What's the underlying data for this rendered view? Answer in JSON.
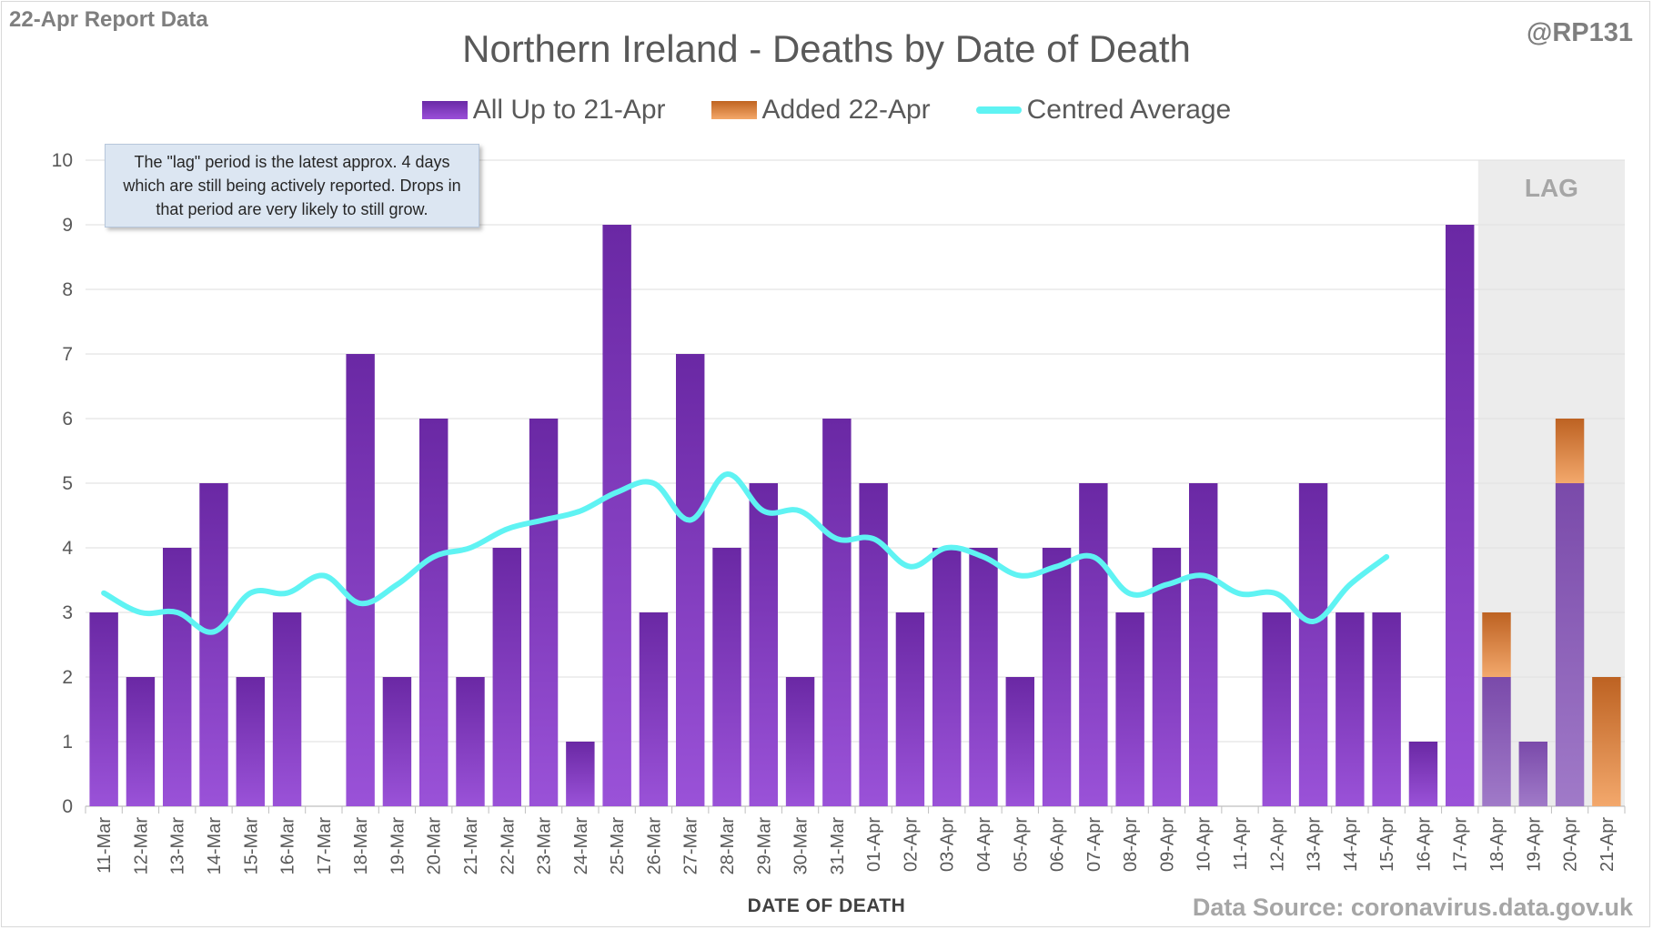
{
  "header": {
    "report_label": "22-Apr Report Data",
    "handle": "@RP131",
    "title": "Northern Ireland - Deaths by Date of Death"
  },
  "note": "The \"lag\" period is the latest approx. 4 days which are still being actively reported.  Drops in that period are very likely to still grow.",
  "footer": {
    "source": "Data Source: coronavirus.data.gov.uk"
  },
  "colors": {
    "purple": "#7030a0",
    "orange": "#e07b39",
    "average": "#5ff3f3",
    "lag_band": "#ececec"
  },
  "chart_data": {
    "type": "bar",
    "title": "Northern Ireland - Deaths by Date of Death",
    "xlabel": "DATE OF DEATH",
    "ylabel": "",
    "ylim": [
      0,
      10
    ],
    "yticks": [
      0,
      1,
      2,
      3,
      4,
      5,
      6,
      7,
      8,
      9,
      10
    ],
    "grid": true,
    "legend_position": "top",
    "stacked": true,
    "categories": [
      "11-Mar",
      "12-Mar",
      "13-Mar",
      "14-Mar",
      "15-Mar",
      "16-Mar",
      "17-Mar",
      "18-Mar",
      "19-Mar",
      "20-Mar",
      "21-Mar",
      "22-Mar",
      "23-Mar",
      "24-Mar",
      "25-Mar",
      "26-Mar",
      "27-Mar",
      "28-Mar",
      "29-Mar",
      "30-Mar",
      "31-Mar",
      "01-Apr",
      "02-Apr",
      "03-Apr",
      "04-Apr",
      "05-Apr",
      "06-Apr",
      "07-Apr",
      "08-Apr",
      "09-Apr",
      "10-Apr",
      "11-Apr",
      "12-Apr",
      "13-Apr",
      "14-Apr",
      "15-Apr",
      "16-Apr",
      "17-Apr",
      "18-Apr",
      "19-Apr",
      "20-Apr",
      "21-Apr"
    ],
    "series": [
      {
        "name": "All Up to 21-Apr",
        "kind": "bar",
        "values": [
          3,
          2,
          4,
          5,
          2,
          3,
          0,
          7,
          2,
          6,
          2,
          4,
          6,
          1,
          9,
          3,
          7,
          4,
          5,
          2,
          6,
          5,
          3,
          4,
          4,
          2,
          4,
          5,
          3,
          4,
          5,
          0,
          3,
          5,
          3,
          3,
          1,
          9,
          2,
          1,
          5,
          0
        ]
      },
      {
        "name": "Added 22-Apr",
        "kind": "bar",
        "values": [
          0,
          0,
          0,
          0,
          0,
          0,
          0,
          0,
          0,
          0,
          0,
          0,
          0,
          0,
          0,
          0,
          0,
          0,
          0,
          0,
          0,
          0,
          0,
          0,
          0,
          0,
          0,
          0,
          0,
          0,
          0,
          0,
          0,
          0,
          0,
          0,
          0,
          0,
          1,
          0,
          1,
          2
        ]
      },
      {
        "name": "Centred Average",
        "kind": "line",
        "values": [
          3.3,
          3.0,
          3.0,
          2.7,
          3.3,
          3.3,
          3.57,
          3.14,
          3.43,
          3.86,
          4.0,
          4.29,
          4.43,
          4.57,
          4.86,
          5.0,
          4.43,
          5.14,
          4.57,
          4.57,
          4.14,
          4.14,
          3.71,
          4.0,
          3.86,
          3.57,
          3.71,
          3.86,
          3.29,
          3.43,
          3.57,
          3.29,
          3.29,
          2.86,
          3.43,
          3.86,
          null,
          null,
          null,
          null,
          null,
          null
        ]
      }
    ],
    "lag": {
      "label": "LAG",
      "start": "18-Apr",
      "end": "21-Apr"
    }
  }
}
